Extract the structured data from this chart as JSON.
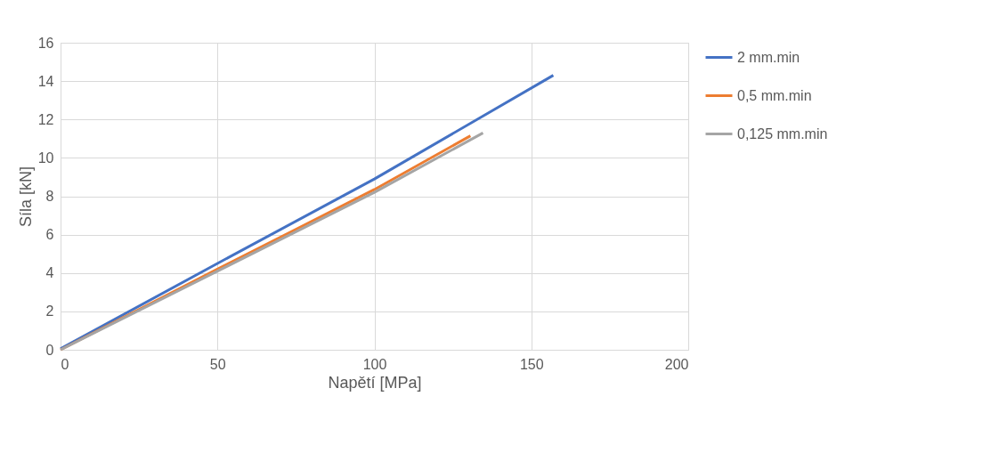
{
  "chart_data": {
    "type": "line",
    "xlabel": "Napětí [MPa]",
    "ylabel": "Síla [kN]",
    "xlim": [
      0,
      200
    ],
    "xticks": [
      0,
      50,
      100,
      150,
      200
    ],
    "ylim": [
      0,
      16
    ],
    "yticks": [
      0,
      2,
      4,
      6,
      8,
      10,
      12,
      14,
      16
    ],
    "grid": true,
    "legend": "right",
    "marker": "none",
    "line_style": "solid",
    "series": [
      {
        "name": "2 mm.min",
        "color": "#4472c4",
        "x": [
          0,
          50,
          100,
          157
        ],
        "values": [
          0.05,
          4.5,
          8.9,
          14.3
        ]
      },
      {
        "name": "0,5 mm.min",
        "color": "#ed7d31",
        "x": [
          0,
          50,
          100,
          130.6
        ],
        "values": [
          0,
          4.2,
          8.35,
          11.15
        ]
      },
      {
        "name": "0,125 mm.min",
        "color": "#a5a5a5",
        "x": [
          0,
          50,
          100,
          134.6
        ],
        "values": [
          0,
          4.1,
          8.2,
          11.3
        ]
      }
    ]
  }
}
